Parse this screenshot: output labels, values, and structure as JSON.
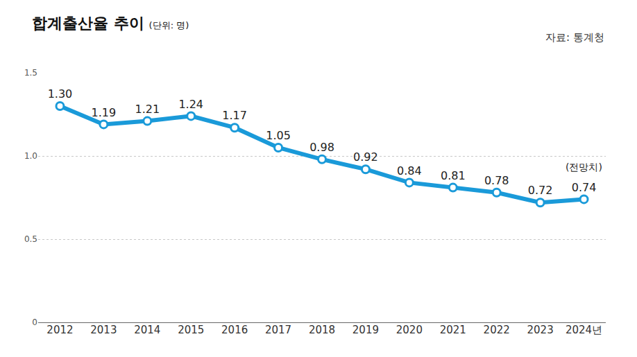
{
  "chart_data": {
    "type": "line",
    "title": "합계출산율 추이",
    "subtitle": "(단위: 명)",
    "source": "자료: 통계청",
    "categories": [
      "2012",
      "2013",
      "2014",
      "2015",
      "2016",
      "2017",
      "2018",
      "2019",
      "2020",
      "2021",
      "2022",
      "2023",
      "2024년"
    ],
    "values": [
      1.3,
      1.19,
      1.21,
      1.24,
      1.17,
      1.05,
      0.98,
      0.92,
      0.84,
      0.81,
      0.78,
      0.72,
      0.74
    ],
    "value_labels": [
      "1.30",
      "1.19",
      "1.21",
      "1.24",
      "1.17",
      "1.05",
      "0.98",
      "0.92",
      "0.84",
      "0.81",
      "0.78",
      "0.72",
      "0.74"
    ],
    "annotations": [
      {
        "text": "(전망치)",
        "category": "2024년"
      }
    ],
    "color": "#1a9ad9",
    "marker": "circle",
    "ylim": [
      0,
      1.5
    ],
    "yticks": [
      0,
      0.5,
      {
        "value": 1,
        "label": "1.0"
      },
      1.5
    ],
    "grid": true,
    "data_labels": true
  }
}
